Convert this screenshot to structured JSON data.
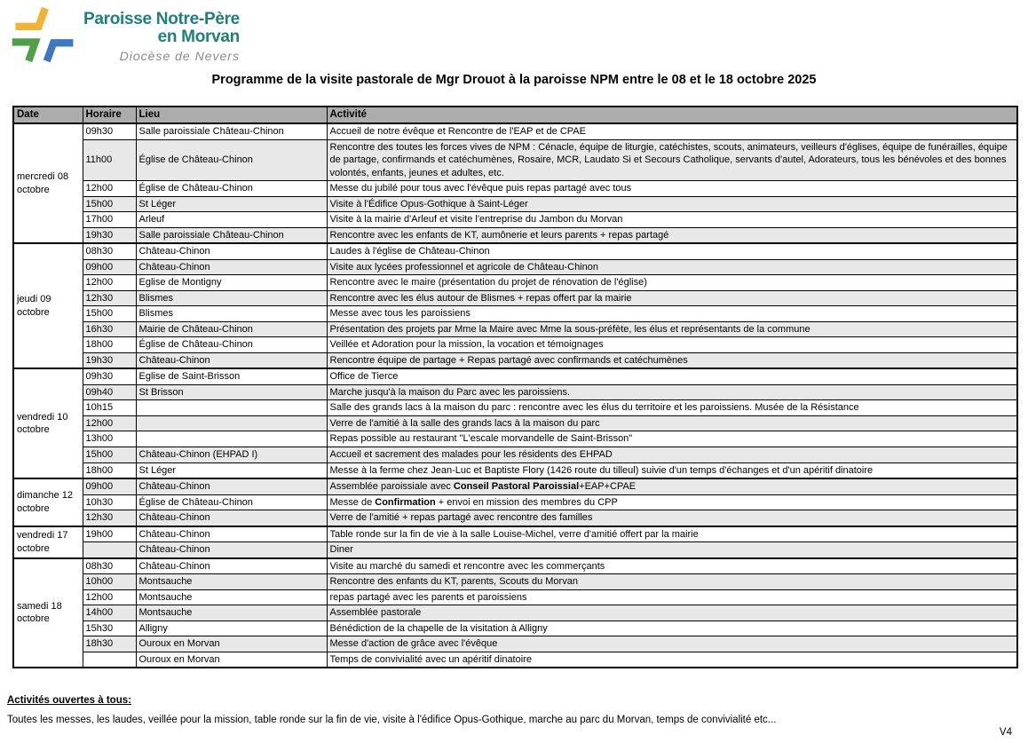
{
  "logo": {
    "name_line1": "Paroisse Notre-Père",
    "name_line2": "en Morvan",
    "subtitle": "Diocèse de Nevers",
    "colors": {
      "teal": "#1d8179",
      "yellow": "#f2b234",
      "green": "#4fa046",
      "blue": "#3d77c2"
    }
  },
  "title": "Programme de la visite pastorale de Mgr Drouot à la paroisse NPM entre le 08 et le 18 octobre 2025",
  "table": {
    "headers": [
      "Date",
      "Horaire",
      "Lieu",
      "Activité"
    ],
    "shaded_row_color": "#e9e8e8",
    "header_bg_color": "#acacac",
    "groups": [
      {
        "date": "mercredi 08 octobre",
        "rows": [
          {
            "time": "09h30",
            "place": "Salle paroissiale Château-Chinon",
            "activity": "Accueil de notre évêque et Rencontre de l'EAP et de CPAE"
          },
          {
            "time": "11h00",
            "place": "Église de Château-Chinon",
            "activity": "Rencontre des toutes les forces vives de NPM : Cénacle, équipe de liturgie, catéchistes, scouts, animateurs, veilleurs d'églises, équipe de funérailles, équipe de partage, confirmands et catéchumènes, Rosaire, MCR, Laudato Si et Secours Catholique, servants d'autel, Adorateurs, tous les bénévoles et des bonnes volontés, enfants, jeunes et adultes, etc."
          },
          {
            "time": "12h00",
            "place": "Église de Château-Chinon",
            "activity": "Messe du jubilé pour tous avec l'évêque puis repas partagé avec tous"
          },
          {
            "time": "15h00",
            "place": "St Léger",
            "activity": "Visite à l'Édifice Opus-Gothique à Saint-Léger"
          },
          {
            "time": "17h00",
            "place": "Arleuf",
            "activity": "Visite à la mairie d'Arleuf et visite l'entreprise du Jambon du Morvan"
          },
          {
            "time": "19h30",
            "place": "Salle paroissiale Château-Chinon",
            "activity": "Rencontre avec les enfants de KT, aumônerie et leurs parents + repas partagé"
          }
        ]
      },
      {
        "date": "jeudi 09 octobre",
        "rows": [
          {
            "time": "08h30",
            "place": "Château-Chinon",
            "activity": "Laudes à l'église de Château-Chinon"
          },
          {
            "time": "09h00",
            "place": "Château-Chinon",
            "activity": "Visite aux lycées professionnel et agricole de Château-Chinon"
          },
          {
            "time": "12h00",
            "place": "Eglise de Montigny",
            "activity": "Rencontre avec le maire (présentation du projet de rénovation de l'église)"
          },
          {
            "time": "12h30",
            "place": "Blismes",
            "activity": "Rencontre avec les élus autour de Blismes + repas offert par la mairie"
          },
          {
            "time": "15h00",
            "place": "Blismes",
            "activity": "Messe avec tous les paroissiens"
          },
          {
            "time": "16h30",
            "place": "Mairie de Château-Chinon",
            "activity": "Présentation des projets par Mme la Maire avec Mme la sous-préfète, les élus et représentants de la commune"
          },
          {
            "time": "18h00",
            "place": "Église de Château-Chinon",
            "activity": "Veillée et Adoration pour la mission, la vocation et témoignages"
          },
          {
            "time": "19h30",
            "place": "Château-Chinon",
            "activity": "Rencontre équipe de partage + Repas partagé avec confirmands et catéchumènes"
          }
        ]
      },
      {
        "date": "vendredi 10 octobre",
        "rows": [
          {
            "time": "09h30",
            "place": "Eglise de Saint-Brisson",
            "activity": "Office de Tierce"
          },
          {
            "time": "09h40",
            "place": "St Brisson",
            "activity": "Marche jusqu'à la maison du Parc avec les paroissiens."
          },
          {
            "time": "10h15",
            "place": "",
            "activity": "Salle des grands lacs à la maison du parc : rencontre avec les élus du territoire et les paroissiens. Musée de la Résistance"
          },
          {
            "time": "12h00",
            "place": "",
            "activity": "Verre de l'amitié à la salle des grands lacs à la maison du parc"
          },
          {
            "time": "13h00",
            "place": "",
            "activity": "Repas possible au restaurant \"L'escale morvandelle de Saint-Brisson\""
          },
          {
            "time": "15h00",
            "place": "Château-Chinon (EHPAD I)",
            "activity": "Accueil et sacrement des malades pour les résidents des EHPAD"
          },
          {
            "time": "18h00",
            "place": "St Léger",
            "activity": "Messe à la ferme chez Jean-Luc et Baptiste Flory (1426 route du tilleul) suivie d'un temps d'échanges et d'un apéritif dinatoire"
          }
        ]
      },
      {
        "date": "dimanche 12 octobre",
        "rows": [
          {
            "time": "09h00",
            "place": "Château-Chinon",
            "activity": "Assemblée paroissiale avec **Conseil Pastoral Paroissial**+EAP+CPAE"
          },
          {
            "time": "10h30",
            "place": "Église de Château-Chinon",
            "activity": "Messe de **Confirmation** + envoi en mission des membres du CPP"
          },
          {
            "time": "12h30",
            "place": "Château-Chinon",
            "activity": "Verre de l'amitié + repas partagé avec rencontre des familles"
          }
        ]
      },
      {
        "date": "vendredi 17 octobre",
        "rows": [
          {
            "time": "19h00",
            "place": "Château-Chinon",
            "activity": "Table ronde sur la fin de vie à la salle Louise-Michel, verre d'amitié offert par la mairie"
          },
          {
            "time": "",
            "place": "Château-Chinon",
            "activity": "Diner"
          }
        ]
      },
      {
        "date": "samedi 18 octobre",
        "rows": [
          {
            "time": "08h30",
            "place": "Château-Chinon",
            "activity": "Visite au marché du samedi et rencontre avec les commerçants"
          },
          {
            "time": "10h00",
            "place": "Montsauche",
            "activity": "Rencontre des enfants du KT, parents, Scouts du Morvan"
          },
          {
            "time": "12h00",
            "place": "Montsauche",
            "activity": "repas partagé avec les parents et paroissiens"
          },
          {
            "time": "14h00",
            "place": "Montsauche",
            "activity": "Assemblée pastorale"
          },
          {
            "time": "15h30",
            "place": "Alligny",
            "activity": "Bénédiction de la chapelle de la visitation à Alligny"
          },
          {
            "time": "18h30",
            "place": "Ouroux en Morvan",
            "activity": "Messe d'action de grâce avec l'évêque"
          },
          {
            "time": "",
            "place": "Ouroux en Morvan",
            "activity": "Temps de convivialité avec un apéritif dinatoire"
          }
        ]
      }
    ]
  },
  "footer": {
    "heading": "Activités ouvertes à tous: ",
    "text": "Toutes les messes, les laudes, veillée pour la mission, table ronde sur la fin de vie, visite à l'édifice Opus-Gothique, marche au parc du Morvan, temps de convivialité etc...",
    "version": "V4"
  }
}
